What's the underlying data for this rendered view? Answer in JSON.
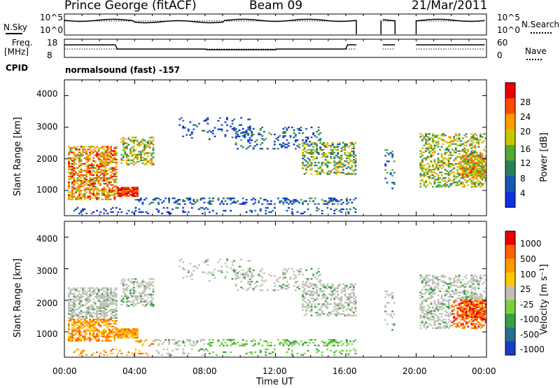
{
  "header": {
    "station": "Prince George (fitACF)",
    "beam": "Beam 09",
    "date": "21/Mar/2011"
  },
  "summary_panels": {
    "nsky_label": "N.Sky",
    "nsky_ticks": [
      "10^5",
      "10^0"
    ],
    "nsearch_label": "N.Search",
    "nsearch_ticks": [
      "10^5",
      "10^0"
    ],
    "freq_label_1": "Freq.",
    "freq_label_2": "[MHz]",
    "freq_ticks": [
      "18",
      "8"
    ],
    "nave_label": "Nave",
    "nave_ticks": [
      "60",
      "0"
    ],
    "cpid_label": "CPID",
    "cpid_text": "normalsound (fast) -157"
  },
  "chart_data": [
    {
      "type": "heatmap",
      "title": "",
      "ylabel": "Slant Range [km]",
      "ylim": [
        200,
        4500
      ],
      "yticks": [
        "4000",
        "3000",
        "2000",
        "1000"
      ],
      "xlabel": "Time UT",
      "xticks": [
        "00:00",
        "04:00",
        "08:00",
        "12:00",
        "16:00",
        "20:00",
        "00:00"
      ],
      "colorbar": {
        "label": "Power [dB]",
        "ticks": [
          "28",
          "24",
          "20",
          "16",
          "12",
          "8",
          "4"
        ],
        "colors": [
          "#1030e0",
          "#1a55b8",
          "#2a7f5a",
          "#55a832",
          "#c8c800",
          "#ff9a00",
          "#ff4a00",
          "#e80000"
        ]
      }
    },
    {
      "type": "heatmap",
      "title": "",
      "ylabel": "Slant Range [km]",
      "ylim": [
        200,
        4500
      ],
      "yticks": [
        "4000",
        "3000",
        "2000",
        "1000"
      ],
      "xlabel": "Time UT",
      "xticks": [
        "00:00",
        "04:00",
        "08:00",
        "12:00",
        "16:00",
        "20:00",
        "00:00"
      ],
      "colorbar": {
        "label": "Velocity [m s⁻¹]",
        "ticks": [
          "1000",
          "500",
          "100",
          "25",
          "-25",
          "-100",
          "-500",
          "-1000"
        ],
        "colors": [
          "#1a3cc8",
          "#2a6f8a",
          "#38a040",
          "#7ad040",
          "#c0c0b8",
          "#ffc800",
          "#ff9a00",
          "#ff6000",
          "#e80000"
        ]
      }
    }
  ]
}
